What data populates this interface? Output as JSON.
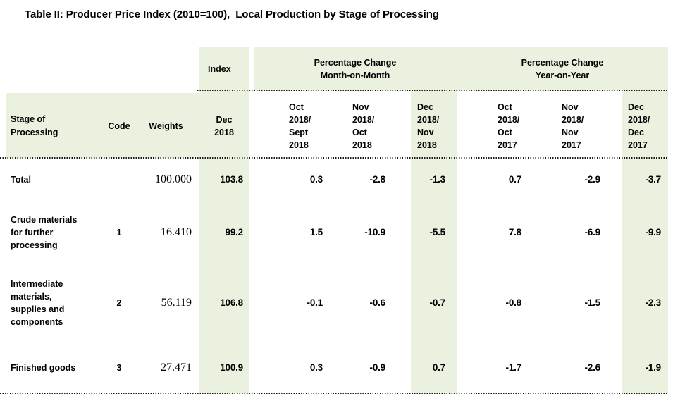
{
  "title": "Table II: Producer Price Index (2010=100),  Local Production by Stage of Processing",
  "colors": {
    "band_green": "#eaf1de",
    "text": "#000000"
  },
  "header": {
    "index_label": "Index",
    "mom_label": "Percentage Change\nMonth-on-Month",
    "yoy_label": "Percentage Change\nYear-on-Year",
    "stage_label": "Stage of\nProcessing",
    "code_label": "Code",
    "weights_label": "Weights",
    "index_sub": "Dec\n2018",
    "mom_subs": [
      "Oct\n2018/\nSept\n2018",
      "Nov\n2018/\nOct\n2018",
      "Dec\n2018/\nNov\n2018"
    ],
    "yoy_subs": [
      "Oct\n2018/\nOct\n2017",
      "Nov\n2018/\nNov\n2017",
      "Dec\n2018/\nDec\n2017"
    ]
  },
  "rows": [
    {
      "stage": "Total",
      "code": "",
      "weights": "100.000",
      "index": "103.8",
      "mom": [
        "0.3",
        "-2.8",
        "-1.3"
      ],
      "yoy": [
        "0.7",
        "-2.9",
        "-3.7"
      ]
    },
    {
      "stage": "Crude materials\nfor further\nprocessing",
      "code": "1",
      "weights": "16.410",
      "index": "99.2",
      "mom": [
        "1.5",
        "-10.9",
        "-5.5"
      ],
      "yoy": [
        "7.8",
        "-6.9",
        "-9.9"
      ]
    },
    {
      "stage": "Intermediate\nmaterials,\nsupplies and\ncomponents",
      "code": "2",
      "weights": "56.119",
      "index": "106.8",
      "mom": [
        "-0.1",
        "-0.6",
        "-0.7"
      ],
      "yoy": [
        "-0.8",
        "-1.5",
        "-2.3"
      ]
    },
    {
      "stage": "Finished goods",
      "code": "3",
      "weights": "27.471",
      "index": "100.9",
      "mom": [
        "0.3",
        "-0.9",
        "0.7"
      ],
      "yoy": [
        "-1.7",
        "-2.6",
        "-1.9"
      ]
    }
  ]
}
